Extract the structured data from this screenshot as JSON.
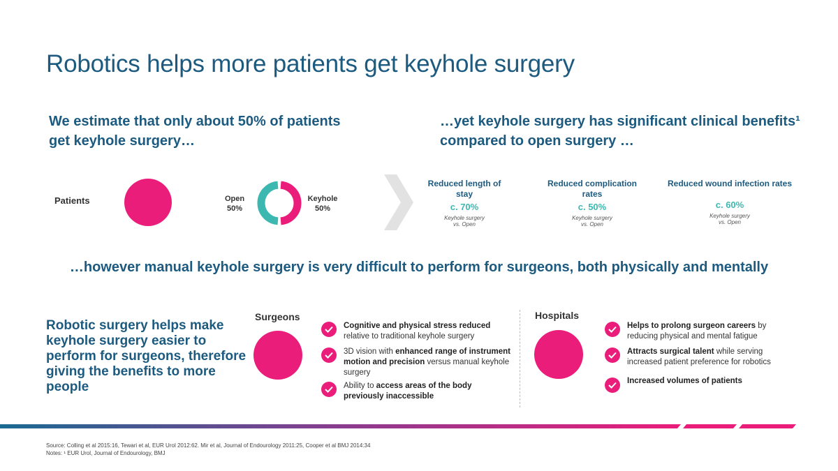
{
  "title": "Robotics helps more patients get keyhole surgery",
  "left_heading": "We estimate that only about 50% of patients get keyhole surgery…",
  "right_heading": "…yet keyhole surgery has significant clinical benefits¹ compared to open surgery …",
  "patients_label": "Patients",
  "donut": {
    "open_label": "Open",
    "open_value": "50%",
    "keyhole_label": "Keyhole",
    "keyhole_value": "50%",
    "open_fraction": 0.5,
    "keyhole_fraction": 0.5,
    "open_color": "#3db8b0",
    "keyhole_color": "#ea1d7b"
  },
  "benefits": [
    {
      "title": "Reduced length of stay",
      "value": "c. 70%",
      "note1": "Keyhole surgery",
      "note2": "vs. Open"
    },
    {
      "title": "Reduced complication rates",
      "value": "c. 50%",
      "note1": "Keyhole surgery",
      "note2": "vs. Open"
    },
    {
      "title": "Reduced wound infection rates",
      "value": "c. 60%",
      "note1": "Keyhole surgery",
      "note2": "vs. Open"
    }
  ],
  "mid_heading": "…however manual keyhole surgery is very difficult to perform for surgeons, both physically and mentally",
  "bottom_heading": "Robotic surgery helps make keyhole surgery easier to perform for surgeons, therefore giving the benefits  to more people",
  "surgeons": {
    "label": "Surgeons",
    "items": [
      {
        "bold1": "Cognitive and physical stress reduced",
        "text1": " relative to traditional keyhole surgery",
        "bold2": "",
        "text2": ""
      },
      {
        "bold1": "",
        "text1": "3D vision with ",
        "bold2": "enhanced range of instrument motion and precision",
        "text2": " versus manual keyhole surgery"
      },
      {
        "bold1": "",
        "text1": "Ability to ",
        "bold2": "access areas of the body previously inaccessible",
        "text2": ""
      }
    ]
  },
  "hospitals": {
    "label": "Hospitals",
    "items": [
      {
        "bold1": "Helps to prolong surgeon careers",
        "text1": " by reducing physical and mental fatigue",
        "bold2": "",
        "text2": ""
      },
      {
        "bold1": "Attracts surgical talent",
        "text1": " while serving increased patient preference for robotics",
        "bold2": "",
        "text2": ""
      },
      {
        "bold1": "Increased volumes of patients",
        "text1": "",
        "bold2": "",
        "text2": ""
      }
    ]
  },
  "source_line": "Source: Colling et al 2015:16, Tewari et al, EUR Urol 2012:62. Mir et al, Journal of Endourology 2011:25, Cooper et al BMJ 2014:34",
  "notes_line": "Notes: ¹ EUR Urol, Journal of Endourology, BMJ",
  "colors": {
    "accent_pink": "#ea1d7b",
    "brand_blue": "#1c5a80",
    "teal": "#3db8b0"
  }
}
